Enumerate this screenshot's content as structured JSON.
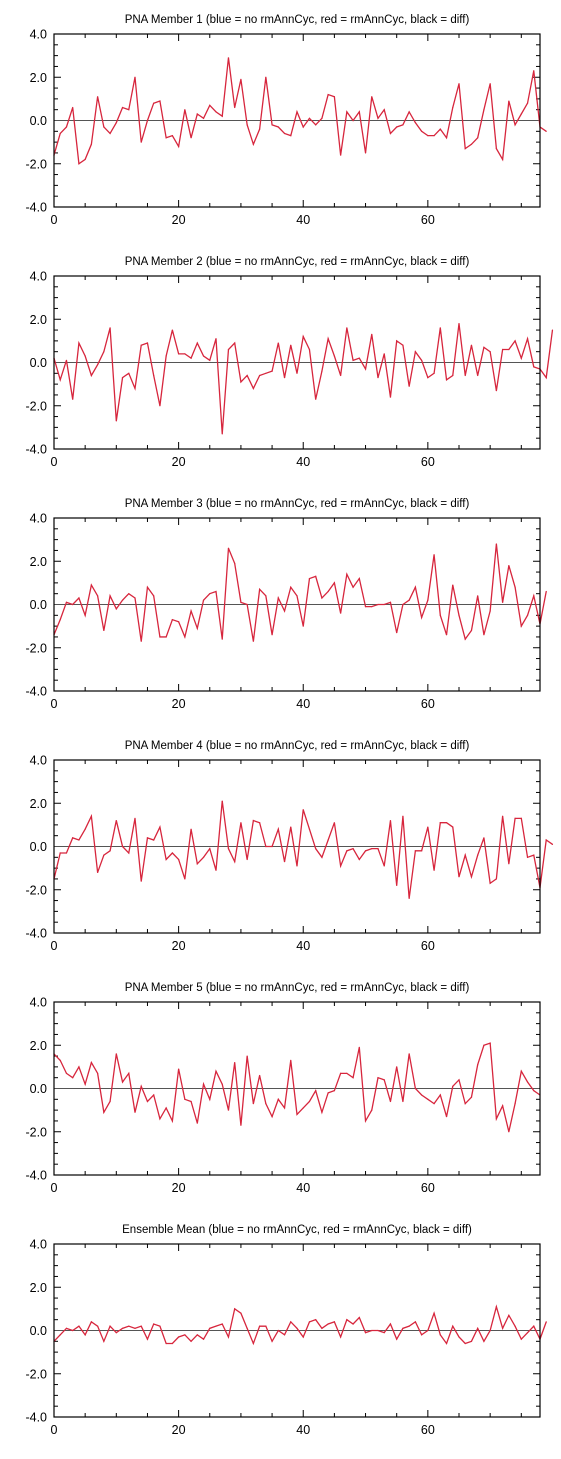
{
  "chart_data": [
    {
      "type": "line",
      "title": "PNA Member 1 (blue = no rmAnnCyc, red = rmAnnCyc, black = diff)",
      "xlim": [
        0,
        78
      ],
      "ylim": [
        -4.0,
        4.0
      ],
      "xticks": [
        0,
        20,
        40,
        60
      ],
      "xtick_labels": [
        "0",
        "20",
        "40",
        "60"
      ],
      "yticks": [
        -4.0,
        -2.0,
        0.0,
        2.0,
        4.0
      ],
      "ytick_labels": [
        "-4.0",
        "-2.0",
        "0.0",
        "2.0",
        "4.0"
      ],
      "reference_line": 0.0,
      "series": [
        {
          "color": "#d7263d",
          "values": [
            -1.6,
            -0.6,
            -0.3,
            0.6,
            -2.0,
            -1.8,
            -1.1,
            1.1,
            -0.3,
            -0.6,
            -0.1,
            0.6,
            0.5,
            2.0,
            -1.0,
            0.0,
            0.8,
            0.9,
            -0.8,
            -0.7,
            -1.2,
            0.5,
            -0.8,
            0.3,
            0.1,
            0.7,
            0.4,
            0.2,
            2.9,
            0.6,
            1.9,
            -0.2,
            -1.1,
            -0.4,
            2.0,
            -0.2,
            -0.3,
            -0.6,
            -0.7,
            0.4,
            -0.3,
            0.1,
            -0.2,
            0.1,
            1.2,
            1.1,
            -1.6,
            0.4,
            0.0,
            0.4,
            -1.5,
            1.1,
            0.1,
            0.5,
            -0.6,
            -0.3,
            -0.2,
            0.4,
            -0.1,
            -0.5,
            -0.7,
            -0.7,
            -0.4,
            -0.8,
            0.6,
            1.7,
            -1.3,
            -1.1,
            -0.8,
            0.5,
            1.7,
            -1.3,
            -1.8,
            0.9,
            -0.2,
            0.3,
            0.8,
            2.3,
            -0.3,
            -0.5
          ]
        }
      ]
    },
    {
      "type": "line",
      "title": "PNA Member 2 (blue = no rmAnnCyc, red = rmAnnCyc, black = diff)",
      "xlim": [
        0,
        78
      ],
      "ylim": [
        -4.0,
        4.0
      ],
      "xticks": [
        0,
        20,
        40,
        60
      ],
      "xtick_labels": [
        "0",
        "20",
        "40",
        "60"
      ],
      "yticks": [
        -4.0,
        -2.0,
        0.0,
        2.0,
        4.0
      ],
      "ytick_labels": [
        "-4.0",
        "-2.0",
        "0.0",
        "2.0",
        "4.0"
      ],
      "reference_line": 0.0,
      "series": [
        {
          "color": "#d7263d",
          "values": [
            0.2,
            -0.8,
            0.1,
            -1.7,
            0.9,
            0.3,
            -0.6,
            -0.1,
            0.5,
            1.6,
            -2.7,
            -0.7,
            -0.5,
            -1.2,
            0.8,
            0.9,
            -0.6,
            -2.0,
            0.3,
            1.5,
            0.4,
            0.4,
            0.2,
            0.9,
            0.3,
            0.1,
            1.1,
            -3.3,
            0.6,
            0.9,
            -0.9,
            -0.6,
            -1.2,
            -0.6,
            -0.5,
            -0.4,
            0.9,
            -0.7,
            0.8,
            -0.5,
            1.2,
            0.6,
            -1.7,
            -0.4,
            1.1,
            0.3,
            -0.6,
            1.6,
            0.1,
            0.2,
            -0.3,
            1.3,
            -0.7,
            0.4,
            -1.6,
            1.0,
            0.8,
            -1.1,
            0.5,
            0.1,
            -0.7,
            -0.5,
            1.6,
            -0.8,
            -0.6,
            1.8,
            -0.6,
            0.8,
            -0.6,
            0.7,
            0.5,
            -1.3,
            0.6,
            0.6,
            1.0,
            0.2,
            1.1,
            -0.2,
            -0.3,
            -0.7,
            1.5
          ]
        }
      ]
    },
    {
      "type": "line",
      "title": "PNA Member 3 (blue = no rmAnnCyc, red = rmAnnCyc, black = diff)",
      "xlim": [
        0,
        78
      ],
      "ylim": [
        -4.0,
        4.0
      ],
      "xticks": [
        0,
        20,
        40,
        60
      ],
      "xtick_labels": [
        "0",
        "20",
        "40",
        "60"
      ],
      "yticks": [
        -4.0,
        -2.0,
        0.0,
        2.0,
        4.0
      ],
      "ytick_labels": [
        "-4.0",
        "-2.0",
        "0.0",
        "2.0",
        "4.0"
      ],
      "reference_line": 0.0,
      "series": [
        {
          "color": "#d7263d",
          "values": [
            -1.4,
            -0.7,
            0.1,
            0.0,
            0.3,
            -0.5,
            0.9,
            0.4,
            -1.2,
            0.4,
            -0.2,
            0.2,
            0.5,
            0.3,
            -1.7,
            0.8,
            0.4,
            -1.5,
            -1.5,
            -0.7,
            -0.8,
            -1.5,
            -0.3,
            -1.1,
            0.2,
            0.5,
            0.6,
            -1.6,
            2.6,
            1.9,
            0.1,
            0.0,
            -1.7,
            0.7,
            0.4,
            -1.4,
            0.3,
            -0.3,
            0.8,
            0.4,
            -1.0,
            1.2,
            1.3,
            0.3,
            0.6,
            1.0,
            -0.4,
            1.4,
            0.8,
            1.2,
            -0.1,
            -0.1,
            0.0,
            0.0,
            0.1,
            -1.3,
            0.0,
            0.2,
            0.8,
            -0.6,
            0.2,
            2.3,
            -0.5,
            -1.4,
            0.9,
            -0.5,
            -1.6,
            -1.2,
            0.4,
            -1.4,
            -0.3,
            2.8,
            0.1,
            1.8,
            0.8,
            -1.0,
            -0.5,
            0.4,
            -0.9,
            0.6
          ]
        }
      ]
    },
    {
      "type": "line",
      "title": "PNA Member 4 (blue = no rmAnnCyc, red = rmAnnCyc, black = diff)",
      "xlim": [
        0,
        78
      ],
      "ylim": [
        -4.0,
        4.0
      ],
      "xticks": [
        0,
        20,
        40,
        60
      ],
      "xtick_labels": [
        "0",
        "20",
        "40",
        "60"
      ],
      "yticks": [
        -4.0,
        -2.0,
        0.0,
        2.0,
        4.0
      ],
      "ytick_labels": [
        "-4.0",
        "-2.0",
        "0.0",
        "2.0",
        "4.0"
      ],
      "reference_line": 0.0,
      "series": [
        {
          "color": "#d7263d",
          "values": [
            -1.5,
            -0.3,
            -0.3,
            0.4,
            0.3,
            0.8,
            1.4,
            -1.2,
            -0.4,
            -0.2,
            1.2,
            0.0,
            -0.3,
            1.3,
            -1.6,
            0.4,
            0.3,
            0.9,
            -0.6,
            -0.3,
            -0.6,
            -1.5,
            0.8,
            -0.8,
            -0.5,
            -0.1,
            -1.1,
            2.1,
            -0.1,
            -0.7,
            1.1,
            -0.6,
            1.2,
            1.1,
            0.0,
            0.0,
            0.8,
            -0.7,
            0.9,
            -0.9,
            1.7,
            0.8,
            -0.1,
            -0.5,
            0.3,
            1.1,
            -0.9,
            -0.2,
            -0.1,
            -0.6,
            -0.2,
            -0.1,
            -0.1,
            -0.9,
            1.2,
            -1.8,
            1.4,
            -2.4,
            -0.2,
            -0.2,
            0.9,
            -1.1,
            1.1,
            1.1,
            0.9,
            -1.4,
            -0.4,
            -1.4,
            -0.4,
            0.4,
            -1.7,
            -1.5,
            1.4,
            -0.8,
            1.3,
            1.3,
            -0.5,
            -0.4,
            -1.9,
            0.3,
            0.1
          ]
        }
      ]
    },
    {
      "type": "line",
      "title": "PNA Member 5 (blue = no rmAnnCyc, red = rmAnnCyc, black = diff)",
      "xlim": [
        0,
        78
      ],
      "ylim": [
        -4.0,
        4.0
      ],
      "xticks": [
        0,
        20,
        40,
        60
      ],
      "xtick_labels": [
        "0",
        "20",
        "40",
        "60"
      ],
      "yticks": [
        -4.0,
        -2.0,
        0.0,
        2.0,
        4.0
      ],
      "ytick_labels": [
        "-4.0",
        "-2.0",
        "0.0",
        "2.0",
        "4.0"
      ],
      "reference_line": 0.0,
      "series": [
        {
          "color": "#d7263d",
          "values": [
            1.6,
            1.3,
            0.7,
            0.5,
            1.0,
            0.2,
            1.2,
            0.7,
            -1.1,
            -0.6,
            1.6,
            0.3,
            0.7,
            -1.1,
            0.1,
            -0.6,
            -0.3,
            -1.4,
            -0.9,
            -1.5,
            0.9,
            -0.5,
            -0.6,
            -1.6,
            0.2,
            -0.5,
            0.8,
            0.2,
            -1.0,
            1.2,
            -1.7,
            1.5,
            -0.7,
            0.6,
            -0.7,
            -1.3,
            -0.5,
            -0.9,
            1.3,
            -1.2,
            -0.9,
            -0.6,
            -0.1,
            -1.1,
            -0.2,
            -0.1,
            0.7,
            0.7,
            0.5,
            1.9,
            -1.5,
            -1.0,
            0.5,
            0.4,
            -0.6,
            1.0,
            -0.6,
            1.6,
            0.0,
            -0.3,
            -0.5,
            -0.7,
            -0.3,
            -1.3,
            0.1,
            0.4,
            -0.7,
            -0.4,
            1.1,
            2.0,
            2.1,
            -1.4,
            -0.8,
            -2.0,
            -0.7,
            0.8,
            0.3,
            -0.1,
            -0.3
          ]
        }
      ]
    },
    {
      "type": "line",
      "title": "Ensemble Mean (blue = no rmAnnCyc, red = rmAnnCyc, black = diff)",
      "xlim": [
        0,
        78
      ],
      "ylim": [
        -4.0,
        4.0
      ],
      "xticks": [
        0,
        20,
        40,
        60
      ],
      "xtick_labels": [
        "0",
        "20",
        "40",
        "60"
      ],
      "yticks": [
        -4.0,
        -2.0,
        0.0,
        2.0,
        4.0
      ],
      "ytick_labels": [
        "-4.0",
        "-2.0",
        "0.0",
        "2.0",
        "4.0"
      ],
      "reference_line": 0.0,
      "series": [
        {
          "color": "#d7263d",
          "values": [
            -0.5,
            -0.2,
            0.1,
            0.0,
            0.2,
            -0.2,
            0.4,
            0.2,
            -0.5,
            0.2,
            -0.1,
            0.1,
            0.2,
            0.1,
            0.2,
            -0.4,
            0.3,
            0.2,
            -0.6,
            -0.6,
            -0.3,
            -0.2,
            -0.5,
            -0.2,
            -0.4,
            0.1,
            0.2,
            0.3,
            -0.3,
            1.0,
            0.8,
            0.1,
            -0.6,
            0.2,
            0.2,
            -0.5,
            0.0,
            -0.2,
            0.4,
            0.1,
            -0.3,
            0.4,
            0.5,
            0.1,
            0.3,
            0.4,
            -0.3,
            0.5,
            0.3,
            0.6,
            -0.1,
            0.0,
            0.0,
            -0.1,
            0.3,
            -0.4,
            0.1,
            0.2,
            0.4,
            -0.2,
            0.0,
            0.8,
            -0.2,
            -0.6,
            0.2,
            -0.3,
            -0.6,
            -0.5,
            0.1,
            -0.5,
            0.0,
            1.1,
            0.1,
            0.7,
            0.2,
            -0.4,
            -0.1,
            0.2,
            -0.4,
            0.4
          ]
        }
      ]
    }
  ]
}
